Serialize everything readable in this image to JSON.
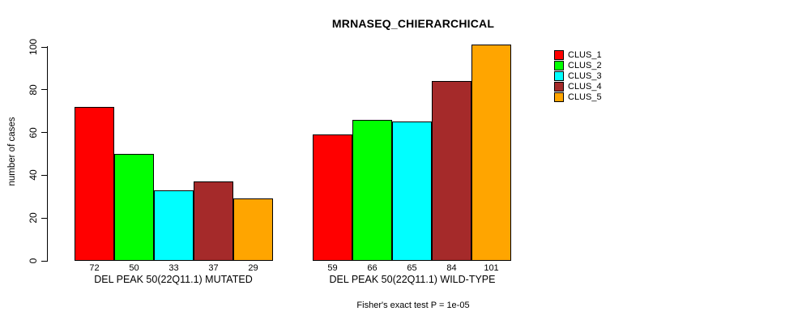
{
  "title": "MRNASEQ_CHIERARCHICAL",
  "y_axis": {
    "label": "number of cases",
    "tick_values": [
      0,
      20,
      40,
      60,
      80,
      100
    ]
  },
  "footer": "Fisher's exact test P = 1e-05",
  "chart_data": {
    "type": "bar",
    "title": "MRNASEQ_CHIERARCHICAL",
    "xlabel": "",
    "ylabel": "number of cases",
    "ylim": [
      0,
      100
    ],
    "grid": false,
    "legend_position": "right",
    "bar_value_labels": true,
    "categories": [
      "DEL PEAK 50(22Q11.1) MUTATED",
      "DEL PEAK 50(22Q11.1) WILD-TYPE"
    ],
    "series": [
      {
        "name": "CLUS_1",
        "color": "#FF0000",
        "values": [
          72,
          59
        ]
      },
      {
        "name": "CLUS_2",
        "color": "#00FF00",
        "values": [
          50,
          66
        ]
      },
      {
        "name": "CLUS_3",
        "color": "#00FFFF",
        "values": [
          33,
          65
        ]
      },
      {
        "name": "CLUS_4",
        "color": "#A52A2A",
        "values": [
          37,
          84
        ]
      },
      {
        "name": "CLUS_5",
        "color": "#FFA500",
        "values": [
          29,
          101
        ]
      }
    ],
    "annotation": "Fisher's exact test P = 1e-05"
  }
}
